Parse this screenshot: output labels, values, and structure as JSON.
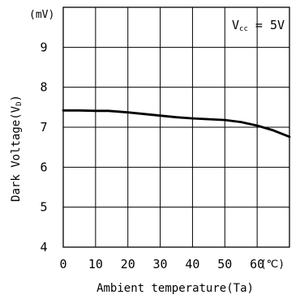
{
  "chart_data": {
    "type": "line",
    "title": "",
    "xlabel": "Ambient temperature(Ta)",
    "ylabel": {
      "main": "Dark Voltage(V",
      "sub": "D",
      "close": ")"
    },
    "x_unit": "(℃)",
    "y_unit": "(mV)",
    "xlim": [
      0,
      70
    ],
    "ylim": [
      4,
      10
    ],
    "x_ticks": [
      0,
      10,
      20,
      30,
      40,
      50,
      60
    ],
    "x_tick_labels": [
      "0",
      "10",
      "20",
      "30",
      "40",
      "50",
      "60"
    ],
    "y_ticks": [
      4,
      5,
      6,
      7,
      8,
      9
    ],
    "y_tick_labels": [
      "4",
      "5",
      "6",
      "7",
      "8",
      "9"
    ],
    "grid": true,
    "annotation": {
      "main": "V",
      "sub": "cc",
      "rest": " = 5V"
    },
    "series": [
      {
        "x": [
          0,
          5,
          10,
          14,
          20,
          25,
          30,
          35,
          40,
          45,
          50,
          55,
          60,
          65,
          70
        ],
        "y": [
          7.42,
          7.42,
          7.41,
          7.41,
          7.37,
          7.33,
          7.29,
          7.25,
          7.22,
          7.2,
          7.18,
          7.13,
          7.04,
          6.92,
          6.76
        ]
      }
    ]
  }
}
